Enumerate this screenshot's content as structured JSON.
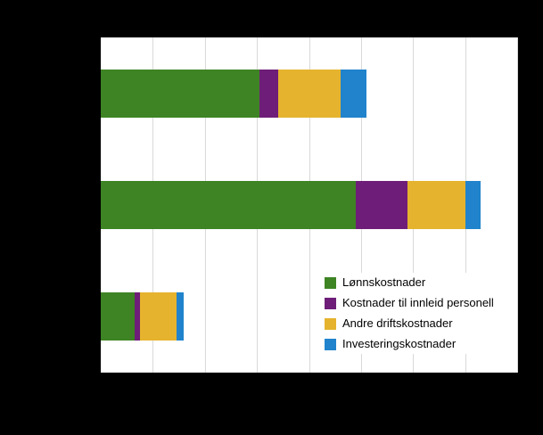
{
  "page": {
    "background_color": "#000000",
    "plot_background_color": "#ffffff",
    "gridline_color": "#d9d9d9"
  },
  "chart_data": {
    "type": "bar",
    "orientation": "horizontal",
    "stacked": true,
    "title": "",
    "xlabel": "",
    "ylabel": "",
    "categories": [
      "",
      "",
      ""
    ],
    "series": [
      {
        "name": "Lønnskostnader",
        "color": "#3e8424",
        "values": [
          3.05,
          4.9,
          0.65
        ]
      },
      {
        "name": "Kostnader til innleid personell",
        "color": "#6e1e78",
        "values": [
          0.35,
          1.0,
          0.1
        ]
      },
      {
        "name": "Andre driftskostnader",
        "color": "#e5b32e",
        "values": [
          1.2,
          1.1,
          0.7
        ]
      },
      {
        "name": "Investeringskostnader",
        "color": "#2083cc",
        "values": [
          0.5,
          0.3,
          0.15
        ]
      }
    ],
    "xlim": [
      0,
      8
    ],
    "gridline_interval": 1,
    "grid": "vertical-only",
    "legend_position": "inside-bottom-right",
    "axis_tick_labels_visible": false
  }
}
